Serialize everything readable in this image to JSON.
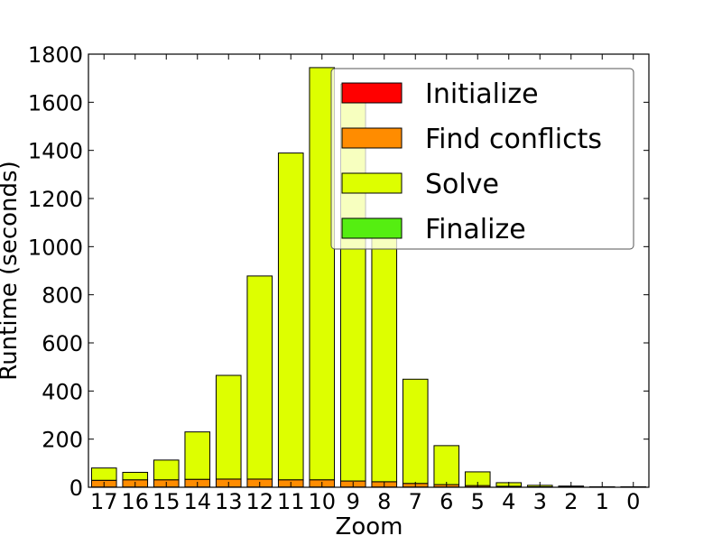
{
  "chart_data": {
    "type": "bar",
    "stacked": true,
    "title": "",
    "xlabel": "Zoom",
    "ylabel": "Runtime (seconds)",
    "ylim": [
      0,
      1800
    ],
    "yticks": [
      0,
      200,
      400,
      600,
      800,
      1000,
      1200,
      1400,
      1600,
      1800
    ],
    "grid": false,
    "legend_position": "top-right",
    "categories": [
      "17",
      "16",
      "15",
      "14",
      "13",
      "12",
      "11",
      "10",
      "9",
      "8",
      "7",
      "6",
      "5",
      "4",
      "3",
      "2",
      "1",
      "0"
    ],
    "series": [
      {
        "name": "Initialize",
        "color": "#ff0000",
        "values": [
          1,
          1,
          1,
          1,
          1,
          1,
          1,
          1,
          1,
          1,
          1,
          1,
          1,
          1,
          1,
          1,
          1,
          1
        ]
      },
      {
        "name": "Find conflicts",
        "color": "#ff8c00",
        "values": [
          28,
          30,
          30,
          32,
          33,
          33,
          30,
          30,
          25,
          22,
          15,
          10,
          6,
          3,
          1,
          1,
          0,
          0
        ]
      },
      {
        "name": "Solve",
        "color": "#ddff00",
        "values": [
          51,
          31,
          82,
          197,
          431,
          844,
          1358,
          1713,
          1649,
          1077,
          433,
          162,
          57,
          15,
          6,
          3,
          1,
          1
        ]
      },
      {
        "name": "Finalize",
        "color": "#55ee11",
        "values": [
          0,
          0,
          0,
          0,
          0,
          0,
          0,
          0,
          0,
          0,
          0,
          0,
          0,
          0,
          0,
          0,
          0,
          0
        ]
      }
    ]
  }
}
